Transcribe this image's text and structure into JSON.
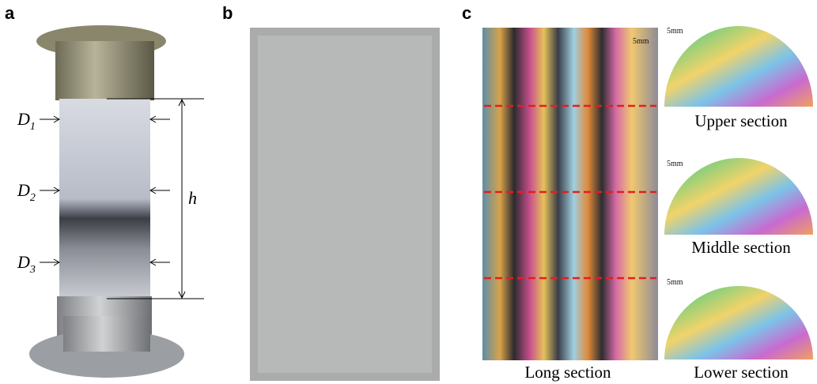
{
  "panels": {
    "a": {
      "label": "a",
      "annotations": [
        {
          "main": "D",
          "sub": "1"
        },
        {
          "main": "D",
          "sub": "2"
        },
        {
          "main": "D",
          "sub": "3"
        }
      ],
      "height_label": "h"
    },
    "b": {
      "label": "b"
    },
    "c": {
      "label": "c",
      "long_section": {
        "scale": "5mm",
        "caption": "Long section"
      },
      "cross_sections": [
        {
          "scale": "5mm",
          "caption": "Upper section"
        },
        {
          "scale": "5mm",
          "caption": "Middle section"
        },
        {
          "scale": "5mm",
          "caption": "Lower section"
        }
      ]
    }
  }
}
